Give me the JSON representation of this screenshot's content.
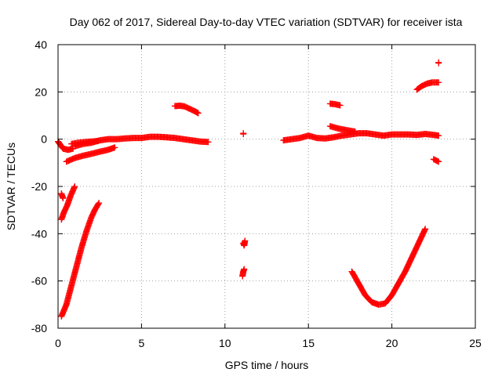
{
  "chart_data": {
    "type": "scatter",
    "title": "Day 062 of 2017, Sidereal Day-to-day VTEC variation (SDTVAR) for receiver ista",
    "xlabel": "GPS time / hours",
    "ylabel": "SDTVAR / TECUs",
    "xlim": [
      0,
      25
    ],
    "ylim": [
      -80,
      40
    ],
    "xticks": [
      0,
      5,
      10,
      15,
      20,
      25
    ],
    "yticks": [
      -80,
      -60,
      -40,
      -20,
      0,
      20,
      40
    ],
    "xtick_labels": [
      "0",
      "5",
      "10",
      "15",
      "20",
      "25"
    ],
    "ytick_labels": [
      "-80",
      "-60",
      "-40",
      "-20",
      "0",
      "20",
      "40"
    ],
    "grid": true,
    "marker": "plus",
    "series_color": "#ff0000",
    "series": [
      {
        "x": [
          0.0,
          0.1,
          0.3,
          0.6,
          0.9
        ],
        "y": [
          -1,
          -2,
          -4,
          -4.5,
          -4
        ]
      },
      {
        "x": [
          0.2,
          0.3
        ],
        "y": [
          -23,
          -25
        ]
      },
      {
        "x": [
          0.2,
          0.35,
          0.55,
          0.75,
          1.0
        ],
        "y": [
          -34,
          -31,
          -28,
          -24,
          -20
        ]
      },
      {
        "x": [
          0.2,
          0.5,
          0.8,
          1.1,
          1.4,
          1.7,
          2.0,
          2.2,
          2.45
        ],
        "y": [
          -75,
          -70,
          -62,
          -54,
          -46,
          -39,
          -33,
          -30,
          -27
        ]
      },
      {
        "x": [
          0.5,
          1.0,
          1.5,
          2.0,
          2.5,
          3.0,
          3.4
        ],
        "y": [
          -9.5,
          -8,
          -7,
          -6.2,
          -5.3,
          -4.5,
          -3.5
        ]
      },
      {
        "x": [
          0.8,
          1.2,
          1.6,
          2.0,
          2.4
        ],
        "y": [
          -2,
          -1.5,
          -1.2,
          -1,
          -0.8
        ]
      },
      {
        "x": [
          1.0,
          1.5,
          2.0,
          2.5,
          3.0,
          3.5,
          4.0,
          4.5,
          5.0,
          5.5,
          6.0,
          6.5,
          7.0,
          7.5,
          8.0,
          8.5,
          9.0
        ],
        "y": [
          -3,
          -2,
          -1.5,
          -0.5,
          0,
          0,
          0.3,
          0.5,
          0.5,
          1,
          1,
          0.8,
          0.5,
          0,
          -0.5,
          -1,
          -1.2
        ]
      },
      {
        "x": [
          7.0,
          7.3,
          7.6,
          7.9,
          8.2,
          8.4
        ],
        "y": [
          14,
          14.2,
          13.8,
          12.8,
          11.8,
          11
        ]
      },
      {
        "x": [
          11.1
        ],
        "y": [
          2.5
        ]
      },
      {
        "x": [
          11.1,
          11.15,
          11.2
        ],
        "y": [
          -44,
          -45,
          -43
        ]
      },
      {
        "x": [
          11.05,
          11.1,
          11.15
        ],
        "y": [
          -58,
          -56,
          -55
        ]
      },
      {
        "x": [
          13.5,
          14.0,
          14.5,
          15.0,
          15.5,
          16.0,
          16.5,
          17.0,
          17.5,
          18.0,
          18.5,
          19.0,
          19.5,
          20.0,
          20.5,
          21.0,
          21.5,
          22.0,
          22.5,
          22.8
        ],
        "y": [
          -0.5,
          0,
          0.5,
          1.5,
          0.5,
          0.3,
          0.8,
          1.5,
          2,
          2.5,
          2.5,
          2,
          1.5,
          2,
          2,
          2,
          1.8,
          2.2,
          1.8,
          1.5
        ]
      },
      {
        "x": [
          16.3,
          16.6,
          16.9
        ],
        "y": [
          15,
          14.8,
          14.3
        ]
      },
      {
        "x": [
          16.3,
          16.8,
          17.3,
          17.8
        ],
        "y": [
          5.5,
          4.5,
          3.8,
          3.2
        ]
      },
      {
        "x": [
          17.6,
          18.0,
          18.4,
          18.8,
          19.2,
          19.6,
          20.0,
          20.4,
          20.8,
          21.2,
          21.6,
          22.0
        ],
        "y": [
          -56,
          -61,
          -66,
          -69,
          -70,
          -69.5,
          -66,
          -61,
          -56,
          -50,
          -44,
          -38
        ]
      },
      {
        "x": [
          21.5,
          21.8,
          22.1,
          22.4,
          22.8
        ],
        "y": [
          21,
          22.5,
          23.5,
          24,
          24
        ]
      },
      {
        "x": [
          22.8
        ],
        "y": [
          32.5
        ]
      },
      {
        "x": [
          22.5,
          22.8
        ],
        "y": [
          -8.5,
          -9.5
        ]
      }
    ]
  }
}
